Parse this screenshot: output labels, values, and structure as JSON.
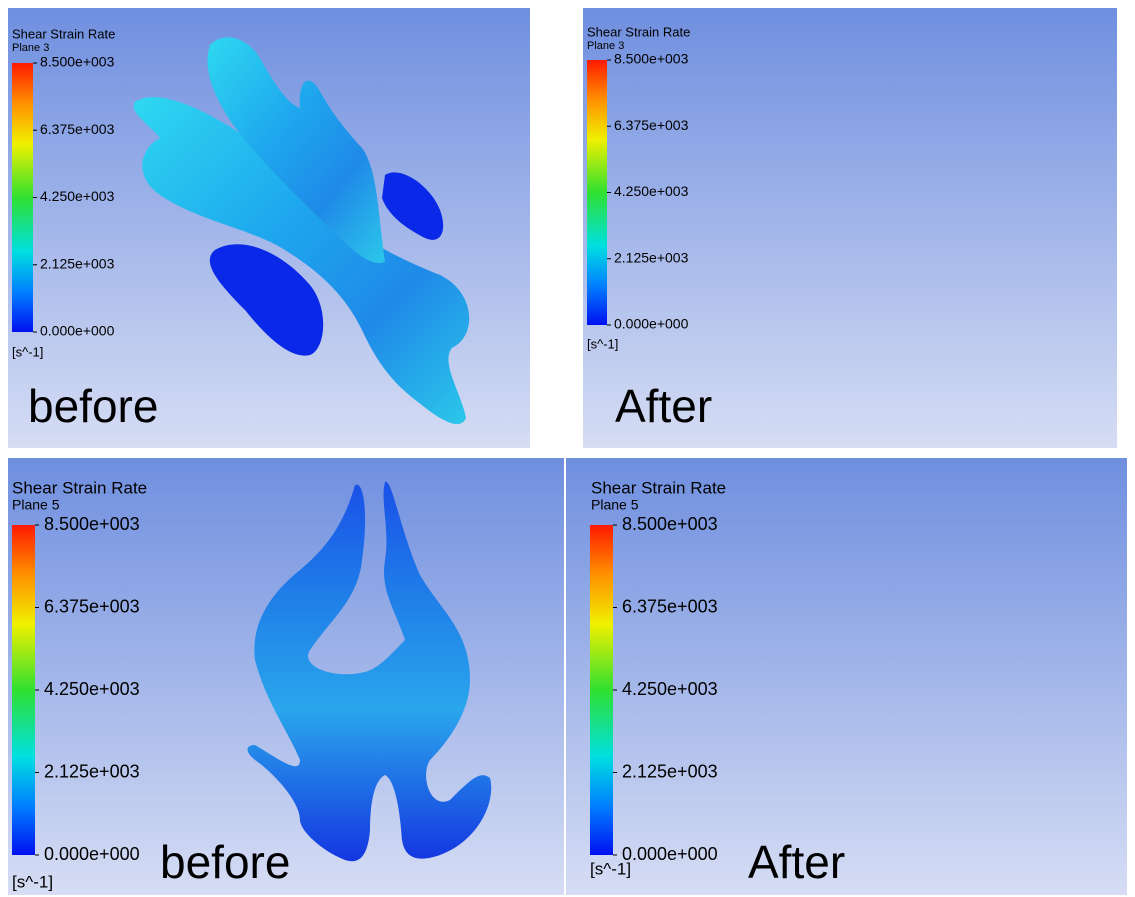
{
  "panels": [
    {
      "title": "Shear Strain Rate",
      "plane": "Plane 3",
      "ticks": [
        "8.500e+003",
        "6.375e+003",
        "4.250e+003",
        "2.125e+003",
        "0.000e+000"
      ],
      "unit": "[s^-1]",
      "caption": "before"
    },
    {
      "title": "Shear Strain Rate",
      "plane": "Plane 3",
      "ticks": [
        "8.500e+003",
        "6.375e+003",
        "4.250e+003",
        "2.125e+003",
        "0.000e+000"
      ],
      "unit": "[s^-1]",
      "caption": "After"
    },
    {
      "title": "Shear Strain Rate",
      "plane": "Plane 5",
      "ticks": [
        "8.500e+003",
        "6.375e+003",
        "4.250e+003",
        "2.125e+003",
        "0.000e+000"
      ],
      "unit": "[s^-1]",
      "caption": "before"
    },
    {
      "title": "Shear Strain Rate",
      "plane": "Plane 5",
      "ticks": [
        "8.500e+003",
        "6.375e+003",
        "4.250e+003",
        "2.125e+003",
        "0.000e+000"
      ],
      "unit": "[s^-1]",
      "caption": "After"
    }
  ]
}
